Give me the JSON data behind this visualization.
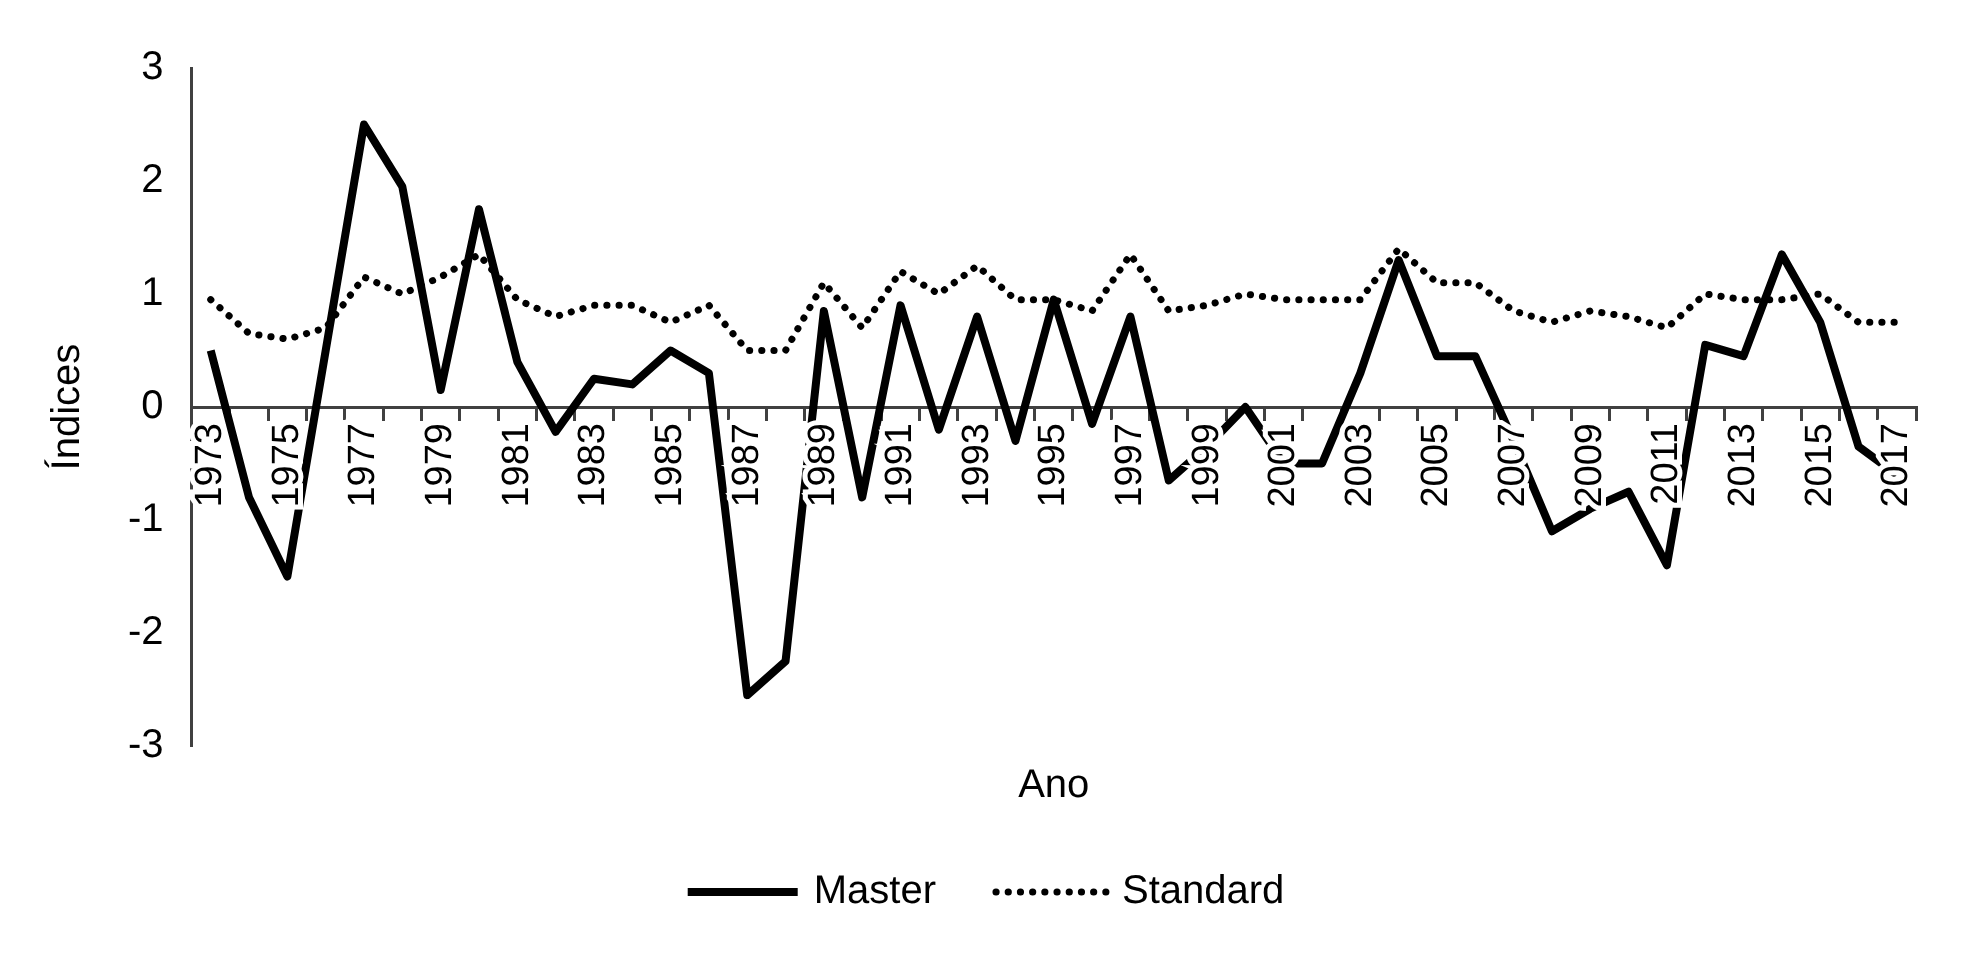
{
  "chart_data": {
    "type": "line",
    "xlabel": "Ano",
    "ylabel": "Índices",
    "categories": [
      "1973",
      null,
      "1975",
      null,
      "1977",
      null,
      "1979",
      null,
      "1981",
      null,
      "1983",
      null,
      "1985",
      null,
      "1987",
      null,
      "1989",
      null,
      "1991",
      null,
      "1993",
      null,
      "1995",
      null,
      "1997",
      null,
      "1999",
      null,
      "2001",
      null,
      "2003",
      null,
      "2005",
      null,
      "2007",
      null,
      "2009",
      null,
      "2011",
      null,
      "2013",
      null,
      "2015",
      null,
      "2017"
    ],
    "series": [
      {
        "name": "Master",
        "color": "#000000",
        "line_style": "solid",
        "values": [
          0.5,
          -0.8,
          -1.5,
          0.5,
          2.5,
          1.95,
          0.15,
          1.75,
          0.4,
          -0.22,
          0.25,
          0.2,
          0.5,
          0.3,
          -2.55,
          -2.25,
          0.85,
          -0.8,
          0.9,
          -0.2,
          0.8,
          -0.3,
          0.95,
          -0.15,
          0.8,
          -0.65,
          -0.35,
          0.0,
          -0.5,
          -0.5,
          0.3,
          1.3,
          0.45,
          0.45,
          -0.3,
          -1.1,
          -0.9,
          -0.75,
          -1.4,
          0.55,
          0.45,
          1.35,
          0.75,
          -0.35,
          -0.6
        ]
      },
      {
        "name": "Standard",
        "color": "#000000",
        "line_style": "dotted",
        "values": [
          0.95,
          0.65,
          0.6,
          0.7,
          1.15,
          1.0,
          1.15,
          1.35,
          0.95,
          0.8,
          0.9,
          0.9,
          0.75,
          0.9,
          0.5,
          0.5,
          1.1,
          0.7,
          1.2,
          1.0,
          1.25,
          0.95,
          0.95,
          0.85,
          1.35,
          0.85,
          0.9,
          1.0,
          0.95,
          0.95,
          0.95,
          1.4,
          1.1,
          1.1,
          0.85,
          0.75,
          0.85,
          0.8,
          0.7,
          1.0,
          0.95,
          0.95,
          1.0,
          0.75,
          0.75
        ]
      }
    ],
    "ylim": [
      -3,
      3
    ],
    "yticks": [
      -3,
      -2,
      -1,
      0,
      1,
      2,
      3
    ],
    "grid": false,
    "legend": "bottom",
    "marker": "none"
  }
}
